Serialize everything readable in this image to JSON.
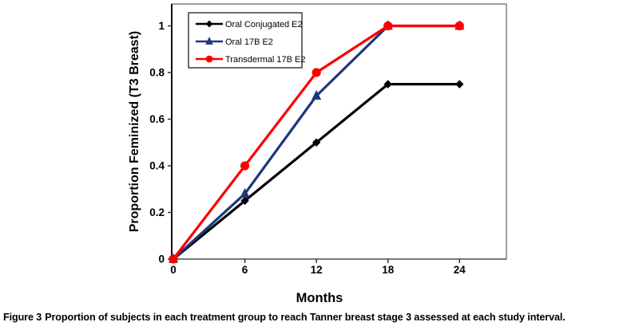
{
  "figure_caption": {
    "label": "Figure 3",
    "text": "Proportion of subjects in each treatment group to reach Tanner breast stage 3 assessed at each study interval."
  },
  "chart_data": {
    "type": "line",
    "title": "",
    "xlabel": "Months",
    "ylabel": "Proportion Feminized (T3 Breast)",
    "x": [
      0,
      6,
      12,
      18,
      24
    ],
    "x_tick_labels": [
      "0",
      "6",
      "12",
      "18",
      "24"
    ],
    "y_ticks": [
      0,
      0.2,
      0.4,
      0.6,
      0.8,
      1
    ],
    "y_tick_labels": [
      "0",
      "0.2",
      "0.4",
      "0.6",
      "0.8",
      "1"
    ],
    "xlim": [
      0,
      27.9
    ],
    "ylim": [
      0,
      1.094
    ],
    "grid": false,
    "legend_position": "top-left",
    "series": [
      {
        "name": "Oral Conjugated E2",
        "marker": "diamond",
        "color": "#000000",
        "values": [
          0,
          0.25,
          0.5,
          0.75,
          0.75
        ]
      },
      {
        "name": "Oral 17B E2",
        "marker": "triangle",
        "color": "#1C3878",
        "values": [
          0,
          0.28,
          0.7,
          1,
          1
        ]
      },
      {
        "name": "Transdermal 17B E2",
        "marker": "circle",
        "color": "#FB0000",
        "values": [
          0,
          0.4,
          0.8,
          1,
          1
        ]
      }
    ]
  }
}
